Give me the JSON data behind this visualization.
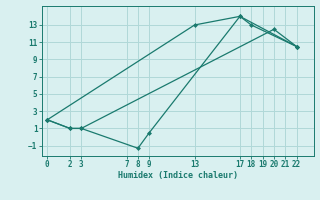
{
  "xlabel": "Humidex (Indice chaleur)",
  "bg_color": "#d9f0f0",
  "grid_color": "#b0d8d8",
  "line_color": "#1a7a6e",
  "lines": [
    {
      "x": [
        0,
        13,
        17,
        18,
        22
      ],
      "y": [
        2,
        13,
        14,
        13,
        10.5
      ]
    },
    {
      "x": [
        0,
        2,
        3,
        20,
        22
      ],
      "y": [
        2,
        1,
        1,
        12.5,
        10.5
      ]
    },
    {
      "x": [
        0,
        2,
        3,
        8,
        9,
        17,
        22
      ],
      "y": [
        2,
        1,
        1,
        -1.3,
        0.5,
        14,
        10.5
      ]
    }
  ],
  "xticks": [
    0,
    2,
    3,
    7,
    8,
    9,
    13,
    17,
    18,
    19,
    20,
    21,
    22
  ],
  "yticks": [
    -1,
    1,
    3,
    5,
    7,
    9,
    11,
    13
  ],
  "xlim": [
    -0.5,
    23.5
  ],
  "ylim": [
    -2.2,
    15.2
  ]
}
